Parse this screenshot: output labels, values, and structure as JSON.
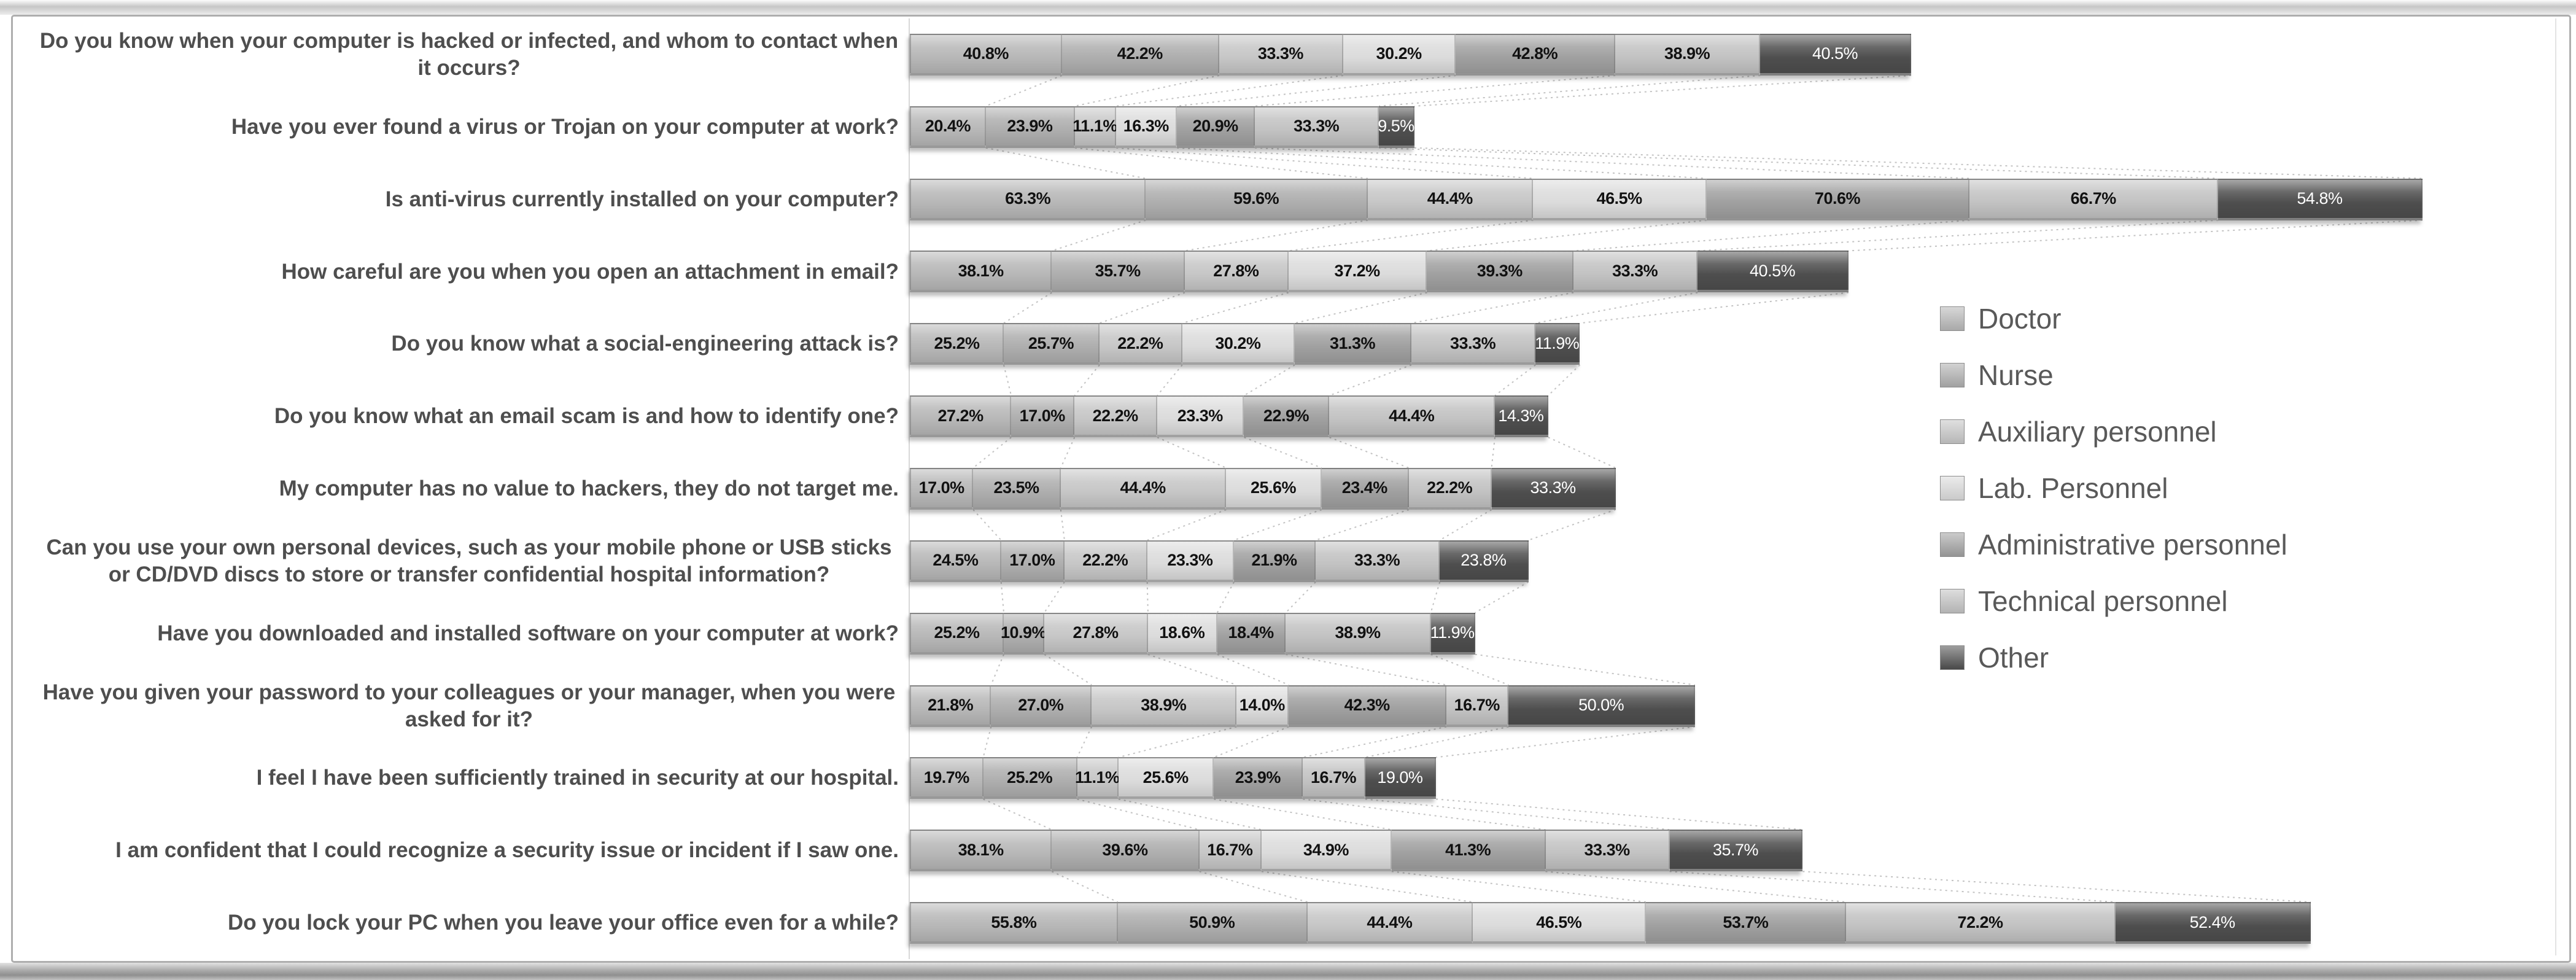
{
  "figure": {
    "description": "Horizontal stacked bar chart of security-awareness survey answers by hospital staff role"
  },
  "chart_data": {
    "type": "bar",
    "orientation": "horizontal",
    "stacked": true,
    "unit": "%",
    "grid": false,
    "legend_position": "center-right",
    "series_names": [
      "Doctor",
      "Nurse",
      "Auxiliary personnel",
      "Lab. Personnel",
      "Administrative personnel",
      "Technical personnel",
      "Other"
    ],
    "series_colors": [
      "#b7b7b7",
      "#aeaeae",
      "#c6c6c6",
      "#dbdbdb",
      "#a0a0a0",
      "#c2c2c2",
      "#4e4e4e"
    ],
    "rows": [
      {
        "question": "Do you know when your computer is hacked or infected, and whom to contact when it occurs?",
        "values": [
          40.8,
          42.2,
          33.3,
          30.2,
          42.8,
          38.9,
          40.5
        ]
      },
      {
        "question": "Have you ever found a virus or Trojan on your computer at work?",
        "values": [
          20.4,
          23.9,
          11.1,
          16.3,
          20.9,
          33.3,
          9.5
        ]
      },
      {
        "question": "Is anti-virus currently installed on your computer?",
        "values": [
          63.3,
          59.6,
          44.4,
          46.5,
          70.6,
          66.7,
          54.8
        ]
      },
      {
        "question": "How careful are you when you open an attachment in email?",
        "values": [
          38.1,
          35.7,
          27.8,
          37.2,
          39.3,
          33.3,
          40.5
        ]
      },
      {
        "question": "Do you know what a social-engineering attack is?",
        "values": [
          25.2,
          25.7,
          22.2,
          30.2,
          31.3,
          33.3,
          11.9
        ]
      },
      {
        "question": "Do you know what an email scam is and how to identify one?",
        "values": [
          27.2,
          17.0,
          22.2,
          23.3,
          22.9,
          44.4,
          14.3
        ]
      },
      {
        "question": "My computer has no value to hackers, they do not target me.",
        "values": [
          17.0,
          23.5,
          44.4,
          25.6,
          23.4,
          22.2,
          33.3
        ]
      },
      {
        "question": "Can you use your own personal devices, such as your mobile phone or USB sticks or CD/DVD discs to store or transfer confidential hospital information?",
        "values": [
          24.5,
          17.0,
          22.2,
          23.3,
          21.9,
          33.3,
          23.8
        ]
      },
      {
        "question": "Have you downloaded and installed software on your computer at work?",
        "values": [
          25.2,
          10.9,
          27.8,
          18.6,
          18.4,
          38.9,
          11.9
        ]
      },
      {
        "question": "Have you given your password to your colleagues or your manager, when you were asked for it?",
        "values": [
          21.8,
          27.0,
          38.9,
          14.0,
          42.3,
          16.7,
          50.0
        ]
      },
      {
        "question": "I feel I have been sufficiently trained in security at our hospital.",
        "values": [
          19.7,
          25.2,
          11.1,
          25.6,
          23.9,
          16.7,
          19.0
        ]
      },
      {
        "question": "I am confident that I could recognize a security issue or incident if I saw one.",
        "values": [
          38.1,
          39.6,
          16.7,
          34.9,
          41.3,
          33.3,
          35.7
        ]
      },
      {
        "question": "Do you lock your PC when you leave your office even for a while?",
        "values": [
          55.8,
          50.9,
          44.4,
          46.5,
          53.7,
          72.2,
          52.4
        ]
      }
    ]
  },
  "legend": {
    "items": [
      {
        "label": "Doctor",
        "color": "#b7b7b7"
      },
      {
        "label": "Nurse",
        "color": "#aeaeae"
      },
      {
        "label": "Auxiliary personnel",
        "color": "#c6c6c6"
      },
      {
        "label": "Lab. Personnel",
        "color": "#dbdbdb"
      },
      {
        "label": "Administrative personnel",
        "color": "#a0a0a0"
      },
      {
        "label": "Technical personnel",
        "color": "#c2c2c2"
      },
      {
        "label": "Other",
        "color": "#4e4e4e"
      }
    ]
  }
}
